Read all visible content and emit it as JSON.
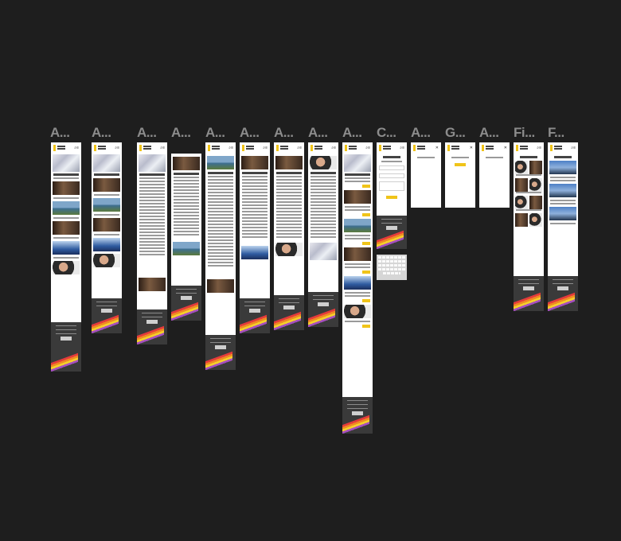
{
  "canvas": {
    "background": "#1e1e1e",
    "accent": "#f0c419",
    "footer_color": "#3a3a3a"
  },
  "frames": [
    {
      "label": "A..."
    },
    {
      "label": "A..."
    },
    {
      "label": "A..."
    },
    {
      "label": "A..."
    },
    {
      "label": "A..."
    },
    {
      "label": "A..."
    },
    {
      "label": "A..."
    },
    {
      "label": "A..."
    },
    {
      "label": "A..."
    },
    {
      "label": "C..."
    },
    {
      "label": "A..."
    },
    {
      "label": "G..."
    },
    {
      "label": "A..."
    },
    {
      "label": "Fi..."
    },
    {
      "label": "F..."
    }
  ]
}
